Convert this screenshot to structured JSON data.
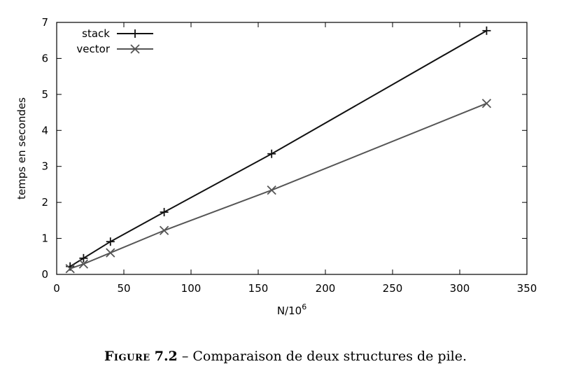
{
  "chart_data": {
    "type": "line",
    "xlabel_base": "N/10",
    "xlabel_exp": "6",
    "ylabel": "temps en secondes",
    "xlim": [
      0,
      350
    ],
    "ylim": [
      0,
      7
    ],
    "xticks": [
      0,
      50,
      100,
      150,
      200,
      250,
      300,
      350
    ],
    "yticks": [
      0,
      1,
      2,
      3,
      4,
      5,
      6,
      7
    ],
    "grid": false,
    "legend_position": "top-left",
    "series": [
      {
        "name": "stack",
        "marker": "plus",
        "color": "#111111",
        "x": [
          10,
          20,
          40,
          80,
          160,
          320
        ],
        "y": [
          0.22,
          0.45,
          0.91,
          1.73,
          3.35,
          6.77
        ]
      },
      {
        "name": "vector",
        "marker": "cross",
        "color": "#555555",
        "x": [
          10,
          20,
          40,
          80,
          160,
          320
        ],
        "y": [
          0.16,
          0.29,
          0.6,
          1.22,
          2.34,
          4.75
        ]
      }
    ]
  },
  "caption": {
    "figure_word": "Figure",
    "figure_number": "7.2",
    "separator": "–",
    "text": "Comparaison de deux structures de pile."
  }
}
